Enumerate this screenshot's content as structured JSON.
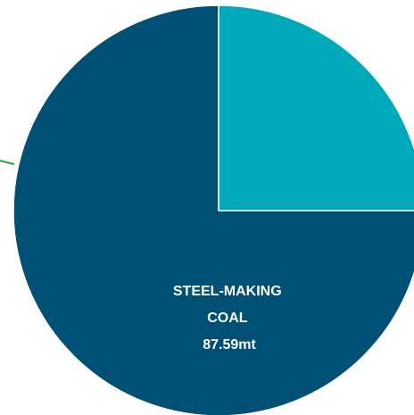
{
  "chart_data": {
    "type": "pie",
    "slices": [
      {
        "value": 25,
        "color": "#00a9b9",
        "label_lines": []
      },
      {
        "value": 75,
        "color": "#004f75",
        "label_lines": [
          "STEEL-MAKING",
          "COAL",
          "87.59mt"
        ]
      }
    ],
    "leader_line_color": "#1fa84a",
    "start_angle_deg": 0,
    "direction": "clockwise"
  }
}
